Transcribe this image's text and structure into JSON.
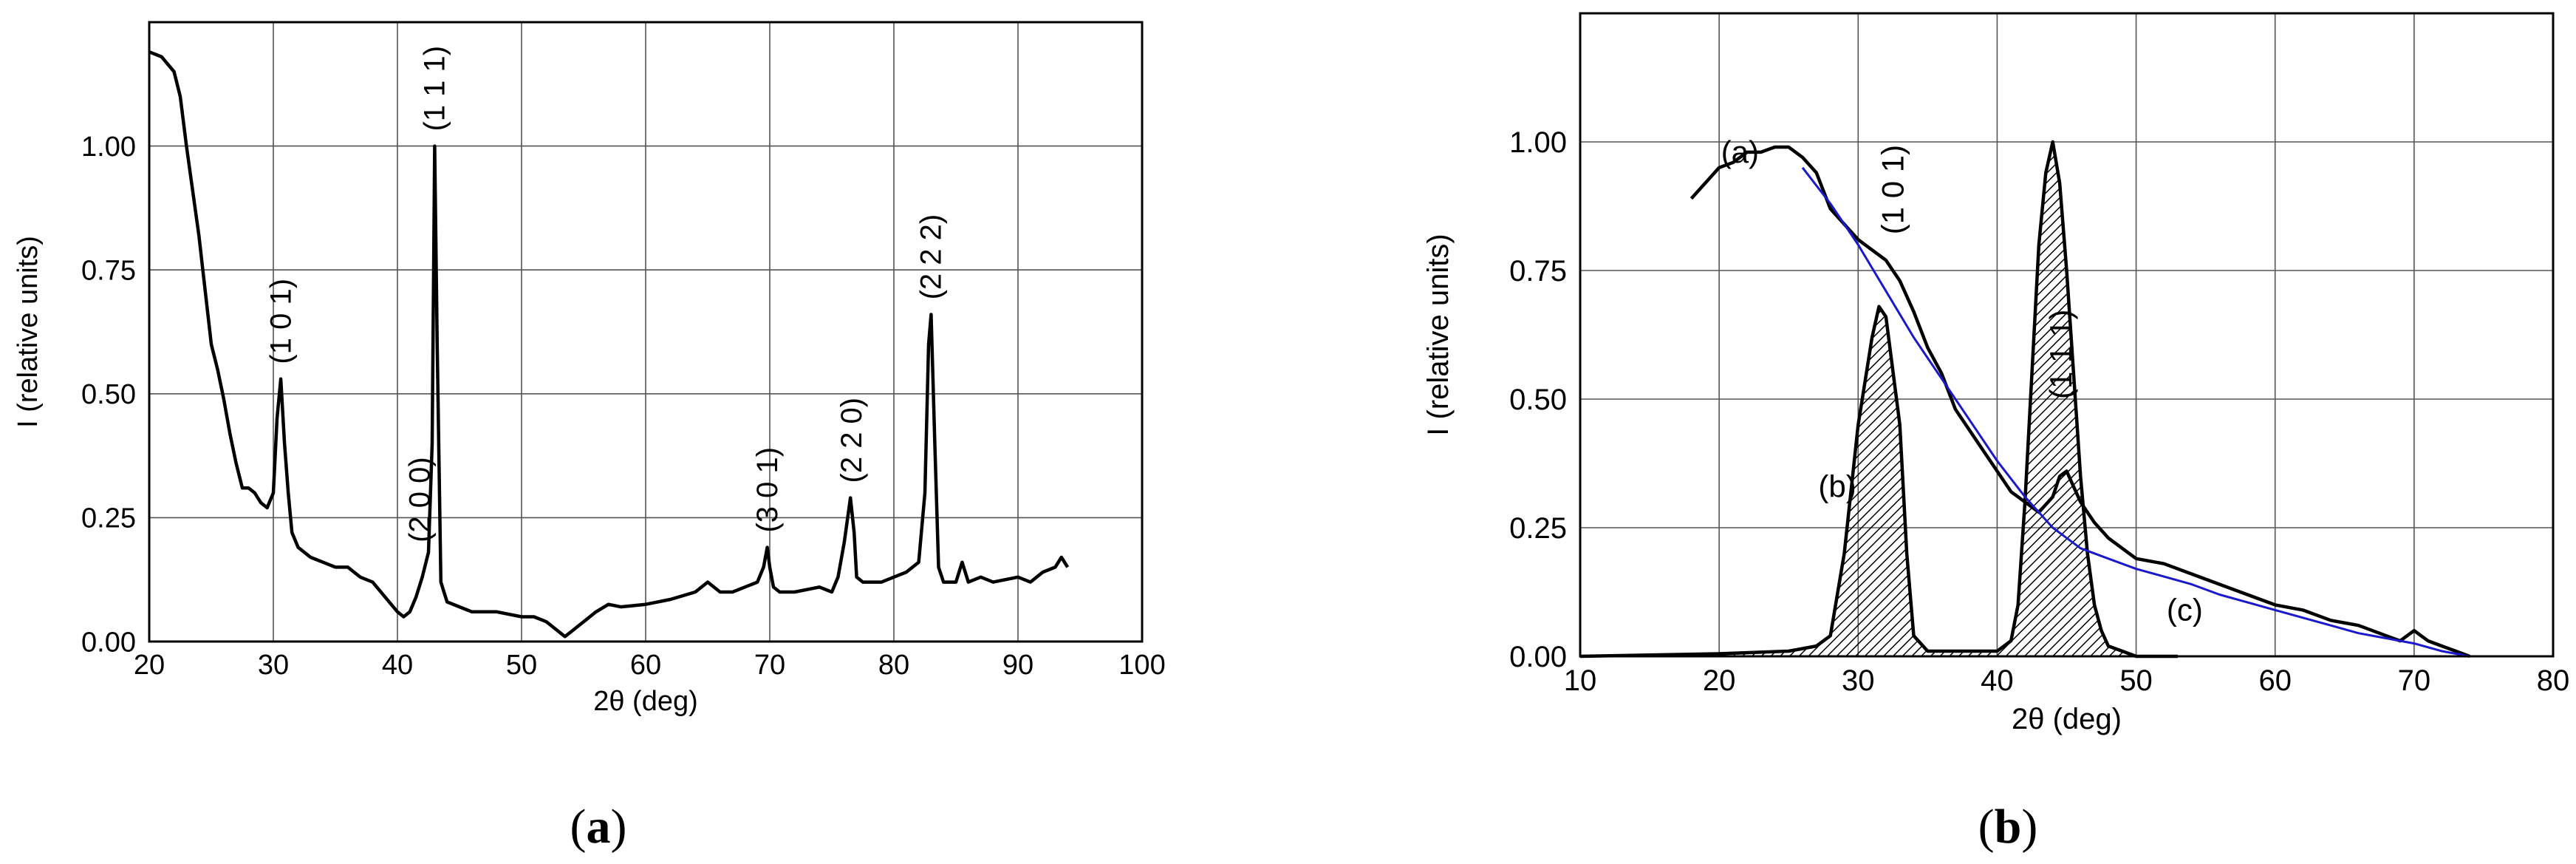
{
  "chart_data": [
    {
      "panel_label": {
        "open": "(",
        "letter": "a",
        "close": ")"
      },
      "type": "line",
      "xlabel": "2θ (deg)",
      "ylabel": "I (relative units)",
      "xlim": [
        20,
        100
      ],
      "ylim": [
        0,
        1.25
      ],
      "xticks": [
        "20",
        "30",
        "40",
        "50",
        "60",
        "70",
        "80",
        "90",
        "100"
      ],
      "yticks": [
        "0.00",
        "0.25",
        "0.50",
        "0.75",
        "1.00"
      ],
      "grid": true,
      "series": [
        {
          "color": "#000000",
          "x": [
            20,
            21,
            22,
            22.5,
            23,
            24,
            25,
            25.5,
            26,
            26.5,
            27,
            27.5,
            28,
            28.5,
            29,
            29.5,
            30,
            30.3,
            30.6,
            30.9,
            31.2,
            31.5,
            32,
            33,
            34,
            35,
            36,
            37,
            38,
            39,
            40,
            40.5,
            41,
            41.5,
            42,
            42.5,
            42.8,
            43,
            43.2,
            43.5,
            44,
            45,
            46,
            48,
            50,
            51,
            52,
            53,
            53.5,
            54,
            55,
            56,
            57,
            58,
            60,
            62,
            64,
            65,
            66,
            67,
            68,
            69,
            69.5,
            69.8,
            70,
            70.3,
            70.8,
            72,
            74,
            75,
            75.5,
            76,
            76.5,
            76.8,
            77,
            77.5,
            78,
            79,
            80,
            81,
            82,
            82.5,
            82.8,
            83,
            83.3,
            83.6,
            84,
            85,
            85.5,
            86,
            87,
            88,
            90,
            91,
            92,
            93,
            93.5,
            94
          ],
          "y": [
            1.19,
            1.18,
            1.15,
            1.1,
            1.0,
            0.82,
            0.6,
            0.55,
            0.49,
            0.42,
            0.36,
            0.31,
            0.31,
            0.3,
            0.28,
            0.27,
            0.3,
            0.45,
            0.53,
            0.4,
            0.3,
            0.22,
            0.19,
            0.17,
            0.16,
            0.15,
            0.15,
            0.13,
            0.12,
            0.09,
            0.06,
            0.05,
            0.06,
            0.09,
            0.13,
            0.18,
            0.4,
            1.0,
            0.6,
            0.12,
            0.08,
            0.07,
            0.06,
            0.06,
            0.05,
            0.05,
            0.04,
            0.02,
            0.01,
            0.02,
            0.04,
            0.06,
            0.075,
            0.07,
            0.075,
            0.085,
            0.1,
            0.12,
            0.1,
            0.1,
            0.11,
            0.12,
            0.15,
            0.19,
            0.15,
            0.11,
            0.1,
            0.1,
            0.11,
            0.1,
            0.13,
            0.2,
            0.29,
            0.22,
            0.13,
            0.12,
            0.12,
            0.12,
            0.13,
            0.14,
            0.16,
            0.3,
            0.6,
            0.66,
            0.4,
            0.15,
            0.12,
            0.12,
            0.16,
            0.12,
            0.13,
            0.12,
            0.13,
            0.12,
            0.14,
            0.15,
            0.17,
            0.15
          ]
        }
      ],
      "annotations": [
        {
          "text": "(1 0 1)",
          "x": 30.6,
          "y": 0.56
        },
        {
          "text": "(2 0 0)",
          "x": 41.8,
          "y": 0.2
        },
        {
          "text": "(1 1 1)",
          "x": 43.0,
          "y": 1.03
        },
        {
          "text": "(3 0 1)",
          "x": 69.8,
          "y": 0.22
        },
        {
          "text": "(2 2 0)",
          "x": 76.6,
          "y": 0.32
        },
        {
          "text": "(2 2 2)",
          "x": 83.0,
          "y": 0.69
        }
      ]
    },
    {
      "panel_label": {
        "open": "(",
        "letter": "b",
        "close": ")"
      },
      "type": "line",
      "xlabel": "2θ (deg)",
      "ylabel": "I (relative units)",
      "xlim": [
        10,
        80
      ],
      "ylim": [
        0,
        1.25
      ],
      "xticks": [
        "10",
        "20",
        "30",
        "40",
        "50",
        "60",
        "70",
        "80"
      ],
      "yticks": [
        "0.00",
        "0.25",
        "0.50",
        "0.75",
        "1.00"
      ],
      "grid": true,
      "series": [
        {
          "label": "(a)",
          "color": "#000000",
          "x": [
            18,
            19,
            20,
            21,
            22,
            23,
            24,
            25,
            26,
            27,
            28,
            29,
            30,
            31,
            32,
            33,
            34,
            35,
            36,
            37,
            38,
            39,
            40,
            41,
            42,
            43,
            44,
            44.5,
            45,
            46,
            47,
            48,
            50,
            52,
            54,
            56,
            58,
            60,
            62,
            64,
            66,
            68,
            69,
            70,
            70.5,
            71,
            72,
            73,
            74
          ],
          "y": [
            0.89,
            0.92,
            0.95,
            0.96,
            0.98,
            0.98,
            0.99,
            0.99,
            0.97,
            0.94,
            0.87,
            0.84,
            0.81,
            0.79,
            0.77,
            0.73,
            0.67,
            0.6,
            0.55,
            0.48,
            0.44,
            0.4,
            0.36,
            0.32,
            0.3,
            0.28,
            0.31,
            0.35,
            0.36,
            0.3,
            0.26,
            0.23,
            0.19,
            0.18,
            0.16,
            0.14,
            0.12,
            0.1,
            0.09,
            0.07,
            0.06,
            0.04,
            0.03,
            0.05,
            0.04,
            0.03,
            0.02,
            0.01,
            0.0
          ]
        },
        {
          "label": "(b)",
          "color": "#000000",
          "hatched": true,
          "x": [
            10,
            20,
            25,
            27,
            28,
            29,
            30,
            31,
            31.5,
            32,
            33,
            33.5,
            34,
            35,
            40,
            41,
            41.5,
            42,
            42.5,
            43,
            43.5,
            44,
            44.5,
            45,
            45.5,
            46,
            46.5,
            47,
            47.5,
            48,
            49,
            50,
            52,
            53
          ],
          "y": [
            0,
            0.005,
            0.01,
            0.02,
            0.04,
            0.2,
            0.45,
            0.62,
            0.68,
            0.66,
            0.45,
            0.2,
            0.04,
            0.01,
            0.01,
            0.03,
            0.1,
            0.3,
            0.55,
            0.8,
            0.94,
            1.0,
            0.92,
            0.75,
            0.55,
            0.35,
            0.2,
            0.1,
            0.05,
            0.02,
            0.01,
            0.0,
            0.0,
            0.0
          ]
        },
        {
          "label": "(c)",
          "color": "#1a1acc",
          "x": [
            26,
            28,
            30,
            32,
            34,
            36,
            38,
            40,
            42,
            44,
            46,
            48,
            50,
            52,
            54,
            56,
            58,
            60,
            62,
            64,
            66,
            68,
            70,
            72,
            74
          ],
          "y": [
            0.95,
            0.88,
            0.8,
            0.71,
            0.62,
            0.54,
            0.46,
            0.38,
            0.31,
            0.25,
            0.21,
            0.19,
            0.17,
            0.155,
            0.14,
            0.12,
            0.105,
            0.09,
            0.075,
            0.06,
            0.045,
            0.035,
            0.025,
            0.01,
            0.0
          ]
        }
      ],
      "annotations": [
        {
          "text": "(1 0 1)",
          "x": 32.5,
          "y": 0.82,
          "rotated": true
        },
        {
          "text": "(1 1 1)",
          "x": 44.6,
          "y": 0.5,
          "rotated": true
        },
        {
          "text": "(a)",
          "x": 21.5,
          "y": 0.98,
          "rotated": false
        },
        {
          "text": "(b)",
          "x": 28.5,
          "y": 0.33,
          "rotated": false
        },
        {
          "text": "(c)",
          "x": 53.5,
          "y": 0.09,
          "rotated": false
        }
      ]
    }
  ]
}
